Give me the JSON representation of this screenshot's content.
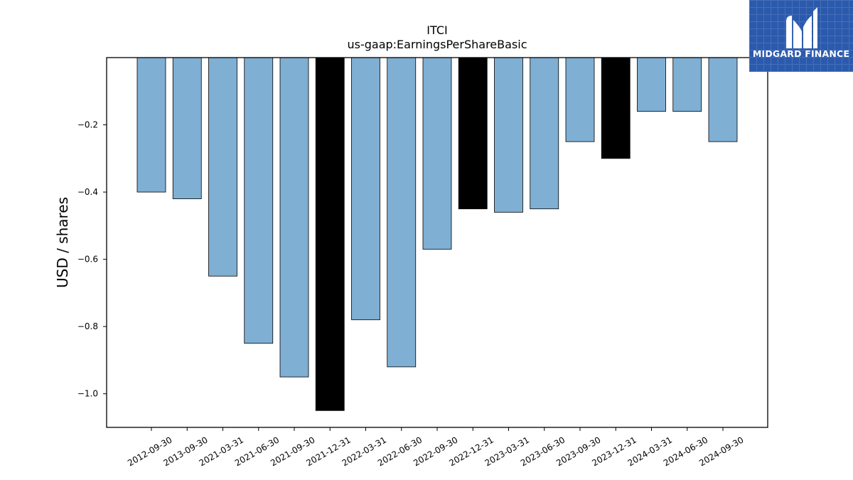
{
  "chart_data": {
    "type": "bar",
    "title": "ITCI",
    "subtitle": "us-gaap:EarningsPerShareBasic",
    "xlabel": "",
    "ylabel": "USD / shares",
    "categories": [
      "2012-09-30",
      "2013-09-30",
      "2021-03-31",
      "2021-06-30",
      "2021-09-30",
      "2021-12-31",
      "2022-03-31",
      "2022-06-30",
      "2022-09-30",
      "2022-12-31",
      "2023-03-31",
      "2023-06-30",
      "2023-09-30",
      "2023-12-31",
      "2024-03-31",
      "2024-06-30",
      "2024-09-30"
    ],
    "values": [
      -0.4,
      -0.42,
      -0.65,
      -0.85,
      -0.95,
      -1.05,
      -0.78,
      -0.92,
      -0.57,
      -0.45,
      -0.46,
      -0.45,
      -0.25,
      -0.3,
      -0.16,
      -0.16,
      -0.25
    ],
    "highlighted": [
      false,
      false,
      false,
      false,
      false,
      true,
      false,
      false,
      false,
      true,
      false,
      false,
      false,
      true,
      false,
      false,
      false
    ],
    "ylim": [
      -1.1,
      0.0
    ],
    "yticks": [
      -1.0,
      -0.8,
      -0.6,
      -0.4,
      -0.2
    ],
    "ytick_labels": [
      "−1.0",
      "−0.8",
      "−0.6",
      "−0.4",
      "−0.2"
    ],
    "grid": false,
    "colors": {
      "bar": "#7fafd3",
      "highlight": "#000000",
      "edge": "#000000"
    }
  },
  "brand": {
    "name": "MIDGARD FINANCE",
    "background": "#2b5aad"
  }
}
